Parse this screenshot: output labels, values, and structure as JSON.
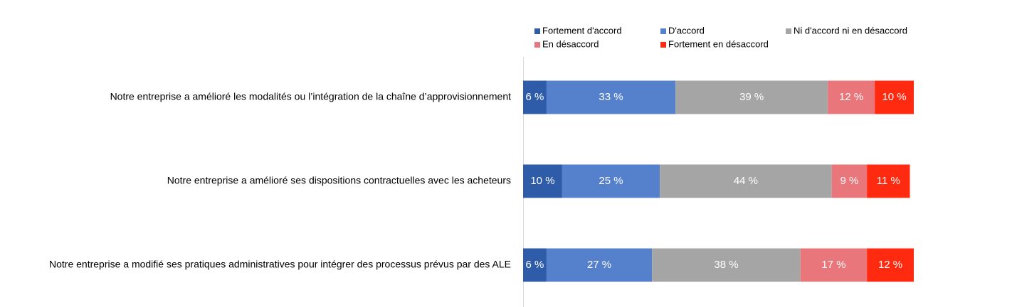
{
  "chart_data": {
    "type": "stacked-bar-horizontal",
    "categories": [
      "Notre entreprise a amélioré les modalités ou l’intégration de la chaîne d’approvisionnement",
      "Notre entreprise a amélioré ses dispositions contractuelles avec les acheteurs",
      "Notre entreprise a modifié ses pratiques administratives pour intégrer des processus prévus par des ALE"
    ],
    "series": [
      {
        "name": "Fortement d'accord",
        "color": "#2e5ca8",
        "values": [
          6,
          10,
          6
        ],
        "value_labels": [
          "6 %",
          "10 %",
          "6 %"
        ]
      },
      {
        "name": "D'accord",
        "color": "#5580cc",
        "values": [
          33,
          25,
          27
        ],
        "value_labels": [
          "33 %",
          "25 %",
          "27 %"
        ]
      },
      {
        "name": "Ni d'accord ni en désaccord",
        "color": "#a5a5a5",
        "values": [
          39,
          44,
          38
        ],
        "value_labels": [
          "39 %",
          "44 %",
          "38 %"
        ]
      },
      {
        "name": "En désaccord",
        "color": "#e8767a",
        "values": [
          12,
          9,
          17
        ],
        "value_labels": [
          "12 %",
          "9 %",
          "17 %"
        ]
      },
      {
        "name": "Fortement en désaccord",
        "color": "#ff2a10",
        "values": [
          10,
          11,
          12
        ],
        "value_labels": [
          "10 %",
          "11 %",
          "12 %"
        ]
      }
    ]
  }
}
